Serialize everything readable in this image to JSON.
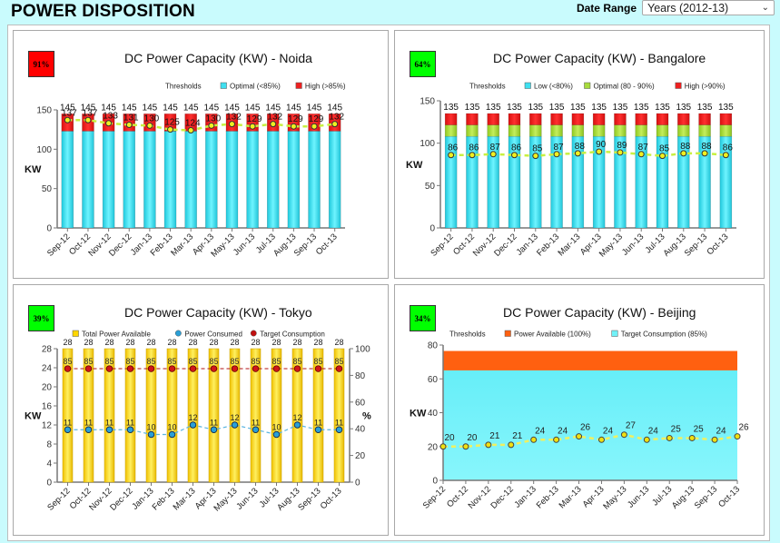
{
  "header": {
    "title": "POWER DISPOSITION",
    "date_range_label": "Date Range",
    "date_range_value": "Years (2012-13)"
  },
  "colors": {
    "page_bg": "#c9fbfd",
    "cyan": "#3fe0f0",
    "red": "#ee2020",
    "green": "#a8dc3c",
    "yellow": "#ffd700",
    "orange": "#ff6010",
    "light_cyan": "#70f2f8",
    "badge_red": "#ff0000",
    "badge_green": "#00ff00",
    "line_yellowgreen": "#c8f040",
    "line_blue": "#2a9fd6",
    "line_darkred": "#b01010"
  },
  "panels": [
    {
      "id": "noida",
      "badge": "91%",
      "badge_color": "#ff0000",
      "title": "DC Power Capacity (KW) - Noida"
    },
    {
      "id": "bangalore",
      "badge": "64%",
      "badge_color": "#00ff00",
      "title": "DC Power Capacity (KW) - Bangalore"
    },
    {
      "id": "tokyo",
      "badge": "39%",
      "badge_color": "#00ff00",
      "title": "DC Power Capacity (KW) - Tokyo"
    },
    {
      "id": "beijing",
      "badge": "34%",
      "badge_color": "#00ff00",
      "title": "DC Power Capacity (KW) - Beijing"
    }
  ],
  "chart_data": [
    {
      "id": "noida",
      "type": "bar",
      "title": "DC Power Capacity (KW) - Noida",
      "ylabel": "KW",
      "ylim": [
        0,
        150
      ],
      "yticks": [
        0,
        50,
        100,
        150
      ],
      "legend_title": "Thresholds",
      "legend": [
        {
          "label": "Optimal (<85%)",
          "color": "#3fe0f0"
        },
        {
          "label": "High (>85%)",
          "color": "#ee2020"
        }
      ],
      "categories": [
        "Sep-12",
        "Oct-12",
        "Nov-12",
        "Dec-12",
        "Jan-13",
        "Feb-13",
        "Mar-13",
        "Apr-13",
        "May-13",
        "Jun-13",
        "Jul-13",
        "Aug-13",
        "Sep-13",
        "Oct-13"
      ],
      "series": [
        {
          "name": "Optimal (<85%)",
          "kind": "stack",
          "color": "#3fe0f0",
          "values": [
            123,
            123,
            123,
            123,
            123,
            123,
            123,
            123,
            123,
            123,
            123,
            123,
            123,
            123
          ]
        },
        {
          "name": "High (>85%)",
          "kind": "stack",
          "color": "#ee2020",
          "values": [
            22,
            22,
            22,
            22,
            22,
            22,
            22,
            22,
            22,
            22,
            22,
            22,
            22,
            22
          ]
        },
        {
          "name": "Consumption",
          "kind": "line",
          "color": "#c8f040",
          "values": [
            137,
            137,
            133,
            131,
            130,
            125,
            124,
            130,
            132,
            129,
            132,
            129,
            129,
            132
          ]
        }
      ],
      "totals": [
        145,
        145,
        145,
        145,
        145,
        145,
        145,
        145,
        145,
        145,
        145,
        145,
        145,
        145
      ]
    },
    {
      "id": "bangalore",
      "type": "bar",
      "title": "DC Power Capacity (KW) - Bangalore",
      "ylabel": "KW",
      "ylim": [
        0,
        150
      ],
      "yticks": [
        0,
        50,
        100,
        150
      ],
      "legend_title": "Thresholds",
      "legend": [
        {
          "label": "Low (<80%)",
          "color": "#3fe0f0"
        },
        {
          "label": "Optimal (80 - 90%)",
          "color": "#a8dc3c"
        },
        {
          "label": "High (>90%)",
          "color": "#ee2020"
        }
      ],
      "categories": [
        "Sep-12",
        "Oct-12",
        "Nov-12",
        "Dec-12",
        "Jan-13",
        "Feb-13",
        "Mar-13",
        "Apr-13",
        "May-13",
        "Jun-13",
        "Jul-13",
        "Aug-13",
        "Sep-13",
        "Oct-13"
      ],
      "series": [
        {
          "name": "Low (<80%)",
          "kind": "stack",
          "color": "#3fe0f0",
          "values": [
            108,
            108,
            108,
            108,
            108,
            108,
            108,
            108,
            108,
            108,
            108,
            108,
            108,
            108
          ]
        },
        {
          "name": "Optimal (80 - 90%)",
          "kind": "stack",
          "color": "#a8dc3c",
          "values": [
            13.5,
            13.5,
            13.5,
            13.5,
            13.5,
            13.5,
            13.5,
            13.5,
            13.5,
            13.5,
            13.5,
            13.5,
            13.5,
            13.5
          ]
        },
        {
          "name": "High (>90%)",
          "kind": "stack",
          "color": "#ee2020",
          "values": [
            13.5,
            13.5,
            13.5,
            13.5,
            13.5,
            13.5,
            13.5,
            13.5,
            13.5,
            13.5,
            13.5,
            13.5,
            13.5,
            13.5
          ]
        },
        {
          "name": "Consumption",
          "kind": "line",
          "color": "#c8f040",
          "values": [
            86,
            86,
            87,
            86,
            85,
            87,
            88,
            90,
            89,
            87,
            85,
            88,
            88,
            86
          ]
        }
      ],
      "totals": [
        135,
        135,
        135,
        135,
        135,
        135,
        135,
        135,
        135,
        135,
        135,
        135,
        135,
        135
      ]
    },
    {
      "id": "tokyo",
      "type": "bar",
      "title": "DC Power Capacity (KW) - Tokyo",
      "ylabel": "KW",
      "y2label": "%",
      "ylim": [
        0,
        28
      ],
      "yticks": [
        0,
        4,
        8,
        12,
        16,
        20,
        24,
        28
      ],
      "y2lim": [
        0,
        100
      ],
      "y2ticks": [
        0,
        20,
        40,
        60,
        80,
        100
      ],
      "legend": [
        {
          "label": "Total Power Available",
          "color": "#ffd700",
          "shape": "square"
        },
        {
          "label": "Power Consumed",
          "color": "#2a9fd6",
          "shape": "circle"
        },
        {
          "label": "Target Consumption",
          "color": "#c01010",
          "shape": "circle"
        }
      ],
      "categories": [
        "Sep-12",
        "Oct-12",
        "Nov-12",
        "Dec-12",
        "Jan-13",
        "Feb-13",
        "Mar-13",
        "Apr-13",
        "May-13",
        "Jun-13",
        "Jul-13",
        "Aug-13",
        "Sep-13",
        "Oct-13"
      ],
      "series": [
        {
          "name": "Total Power Available",
          "kind": "bar",
          "color": "#ffd700",
          "values": [
            28,
            28,
            28,
            28,
            28,
            28,
            28,
            28,
            28,
            28,
            28,
            28,
            28,
            28
          ]
        },
        {
          "name": "Power Consumed",
          "kind": "line",
          "color": "#2a9fd6",
          "values": [
            11,
            11,
            11,
            11,
            10,
            10,
            12,
            11,
            12,
            11,
            10,
            12,
            11,
            11
          ]
        },
        {
          "name": "Target Consumption",
          "kind": "line",
          "axis": "y2",
          "color": "#c01010",
          "values": [
            85,
            85,
            85,
            85,
            85,
            85,
            85,
            85,
            85,
            85,
            85,
            85,
            85,
            85
          ]
        }
      ]
    },
    {
      "id": "beijing",
      "type": "area",
      "title": "DC Power Capacity (KW) - Beijing",
      "ylabel": "KW",
      "ylim": [
        0,
        80
      ],
      "yticks": [
        0,
        20,
        40,
        60,
        80
      ],
      "legend_title": "Thresholds",
      "legend": [
        {
          "label": "Power Available (100%)",
          "color": "#ff6010"
        },
        {
          "label": "Target Consumption (85%)",
          "color": "#70f2f8"
        }
      ],
      "categories": [
        "Sep-12",
        "Oct-12",
        "Nov-12",
        "Dec-12",
        "Jan-13",
        "Feb-13",
        "Mar-13",
        "Apr-13",
        "May-13",
        "Jun-13",
        "Jul-13",
        "Aug-13",
        "Sep-13",
        "Oct-13"
      ],
      "series": [
        {
          "name": "Target Consumption (85%)",
          "kind": "area",
          "color": "#70f2f8",
          "value": 65
        },
        {
          "name": "Power Available (100%)",
          "kind": "area",
          "color": "#ff6010",
          "value": 76.5
        },
        {
          "name": "Consumption",
          "kind": "line",
          "color": "#f0f040",
          "values": [
            20,
            20,
            21,
            21,
            24,
            24,
            26,
            24,
            27,
            24,
            25,
            25,
            24,
            26
          ]
        }
      ]
    }
  ]
}
